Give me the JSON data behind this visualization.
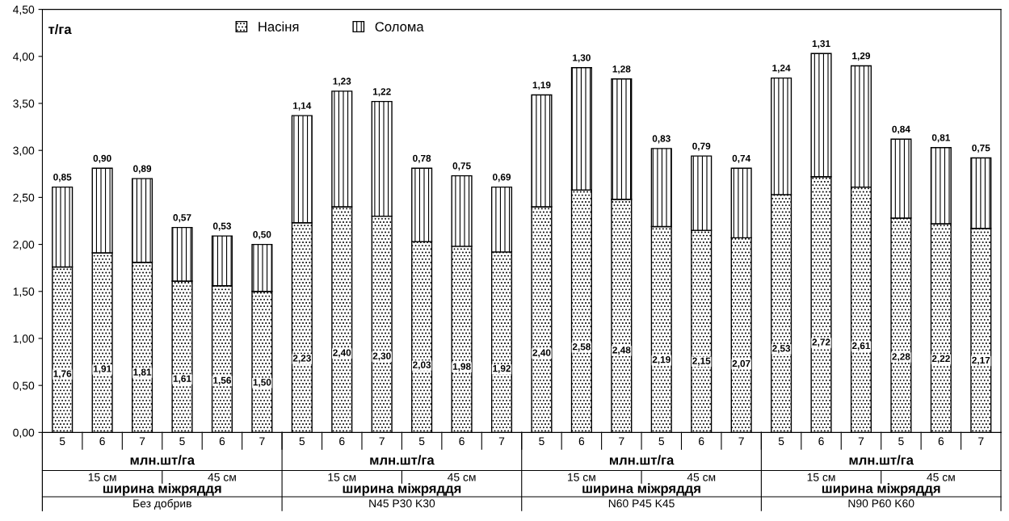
{
  "chart_data": {
    "type": "bar",
    "stacked": true,
    "ylabel": "т/га",
    "categories": [
      "5",
      "6",
      "7",
      "5",
      "6",
      "7",
      "5",
      "6",
      "7",
      "5",
      "6",
      "7",
      "5",
      "6",
      "7",
      "5",
      "6",
      "7",
      "5",
      "6",
      "7",
      "5",
      "6",
      "7"
    ],
    "series": [
      {
        "name": "Насіня",
        "color": "#000000",
        "values": [
          1.76,
          1.91,
          1.81,
          1.61,
          1.56,
          1.5,
          2.23,
          2.4,
          2.3,
          2.03,
          1.98,
          1.92,
          2.4,
          2.58,
          2.48,
          2.19,
          2.15,
          2.07,
          2.53,
          2.72,
          2.61,
          2.28,
          2.22,
          2.17
        ],
        "value_labels": [
          "1,76",
          "1,91",
          "1,81",
          "1,61",
          "1,56",
          "1,50",
          "2,23",
          "2,40",
          "2,30",
          "2,03",
          "1,98",
          "1,92",
          "2,40",
          "2,58",
          "2,48",
          "2,19",
          "2,15",
          "2,07",
          "2,53",
          "2,72",
          "2,61",
          "2,28",
          "2,22",
          "2,17"
        ]
      },
      {
        "name": "Солома",
        "color": "#000000",
        "values": [
          0.85,
          0.9,
          0.89,
          0.57,
          0.53,
          0.5,
          1.14,
          1.23,
          1.22,
          0.78,
          0.75,
          0.69,
          1.19,
          1.3,
          1.28,
          0.83,
          0.79,
          0.74,
          1.24,
          1.31,
          1.29,
          0.84,
          0.81,
          0.75
        ],
        "value_labels": [
          "0,85",
          "0,90",
          "0,89",
          "0,57",
          "0,53",
          "0,50",
          "1,14",
          "1,23",
          "1,22",
          "0,78",
          "0,75",
          "0,69",
          "1,19",
          "1,30",
          "1,28",
          "0,83",
          "0,79",
          "0,74",
          "1,24",
          "1,31",
          "1,29",
          "0,84",
          "0,81",
          "0,75"
        ]
      }
    ],
    "ylim": [
      0,
      4.5
    ],
    "yticks": [
      {
        "value": 0,
        "label": "0,00"
      },
      {
        "value": 0.5,
        "label": "0,50"
      },
      {
        "value": 1,
        "label": "1,00"
      },
      {
        "value": 1.5,
        "label": "1,50"
      },
      {
        "value": 2,
        "label": "2,00"
      },
      {
        "value": 2.5,
        "label": "2,50"
      },
      {
        "value": 3,
        "label": "3,00"
      },
      {
        "value": 3.5,
        "label": "3,50"
      },
      {
        "value": 4,
        "label": "4,00"
      },
      {
        "value": 4.5,
        "label": "4,50"
      }
    ],
    "legend": "top",
    "grid": false,
    "annotations": [
      "млн.шт/га",
      "15 см",
      "45 см",
      "ширина міжряддя",
      "Без добрив",
      "млн.шт/га",
      "15 см",
      "45 см",
      "ширина міжряддя",
      "N45 P30 K30",
      "млн.шт/га",
      "15 см",
      "45 см",
      "ширина міжряддя",
      "N60 P45 K45",
      "млн.шт/га",
      "15 см",
      "45 см",
      "ширина міжряддя",
      "N90 P60 K60"
    ]
  }
}
